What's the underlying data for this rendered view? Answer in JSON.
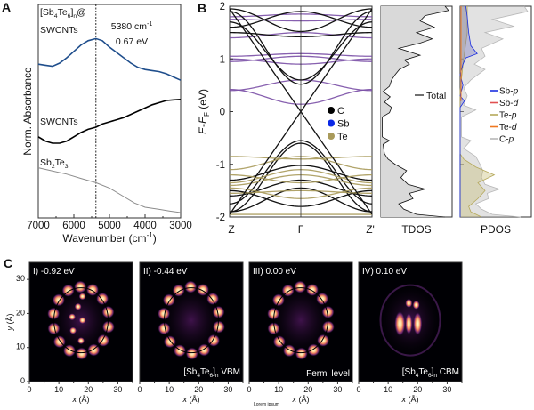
{
  "chart_data": [
    {
      "panel": "A",
      "type": "line",
      "xlabel": "Wavenumber (cm-1)",
      "xlabel_main": "Wavenumber (cm",
      "xlabel_sup": "-1",
      "xlabel_end": ")",
      "ylabel": "Norm. Absorbance",
      "xlim": [
        7000,
        3000
      ],
      "ylim": [
        0,
        1
      ],
      "xticks": [
        7000,
        6000,
        5000,
        4000,
        3000
      ],
      "marker_line": {
        "x": 5380,
        "label1": "5380 cm",
        "label1_sup": "-1",
        "label2": "0.67 eV"
      },
      "series": [
        {
          "name": "[Sb4Te6]n@SWCNTs",
          "label_parts": [
            "[Sb",
            "4",
            "Te",
            "6",
            "]",
            "n",
            "@"
          ],
          "label_line2": "SWCNTs",
          "color": "#1f4e8c",
          "points": [
            [
              7000,
              0.72
            ],
            [
              6800,
              0.715
            ],
            [
              6600,
              0.71
            ],
            [
              6400,
              0.725
            ],
            [
              6200,
              0.75
            ],
            [
              6000,
              0.78
            ],
            [
              5800,
              0.81
            ],
            [
              5600,
              0.83
            ],
            [
              5380,
              0.84
            ],
            [
              5200,
              0.83
            ],
            [
              5000,
              0.8
            ],
            [
              4800,
              0.775
            ],
            [
              4600,
              0.75
            ],
            [
              4400,
              0.725
            ],
            [
              4200,
              0.705
            ],
            [
              4000,
              0.695
            ],
            [
              3800,
              0.69
            ],
            [
              3600,
              0.685
            ],
            [
              3400,
              0.675
            ],
            [
              3200,
              0.66
            ],
            [
              3000,
              0.645
            ]
          ]
        },
        {
          "name": "SWCNTs",
          "label": "SWCNTs",
          "color": "#000000",
          "points": [
            [
              7000,
              0.38
            ],
            [
              6800,
              0.36
            ],
            [
              6600,
              0.35
            ],
            [
              6400,
              0.35
            ],
            [
              6200,
              0.36
            ],
            [
              6000,
              0.38
            ],
            [
              5800,
              0.4
            ],
            [
              5600,
              0.415
            ],
            [
              5380,
              0.425
            ],
            [
              5200,
              0.44
            ],
            [
              5000,
              0.45
            ],
            [
              4800,
              0.46
            ],
            [
              4600,
              0.47
            ],
            [
              4400,
              0.485
            ],
            [
              4200,
              0.5
            ],
            [
              4000,
              0.515
            ],
            [
              3800,
              0.53
            ],
            [
              3600,
              0.54
            ],
            [
              3400,
              0.55
            ],
            [
              3200,
              0.553
            ],
            [
              3000,
              0.555
            ]
          ]
        },
        {
          "name": "Sb2Te3",
          "label_parts": [
            "Sb",
            "2",
            "Te",
            "3"
          ],
          "color": "#8c8c8c",
          "points": [
            [
              7000,
              0.235
            ],
            [
              6600,
              0.22
            ],
            [
              6200,
              0.205
            ],
            [
              5800,
              0.185
            ],
            [
              5380,
              0.165
            ],
            [
              5000,
              0.14
            ],
            [
              4600,
              0.1
            ],
            [
              4300,
              0.07
            ],
            [
              4000,
              0.05
            ],
            [
              3600,
              0.04
            ],
            [
              3300,
              0.032
            ],
            [
              3000,
              0.025
            ]
          ]
        }
      ]
    },
    {
      "panel": "B-bands",
      "type": "line",
      "ylabel": "E-EF (eV)",
      "ylabel_main": "E",
      "ylabel_mid": "-E",
      "ylabel_sub": "F",
      "ylabel_end": " (eV)",
      "ylim": [
        -2,
        2
      ],
      "yticks": [
        -2,
        -1,
        0,
        1,
        2
      ],
      "kpoints": [
        "Z",
        "Γ",
        "Z'"
      ],
      "legend": [
        {
          "label": "C",
          "color": "#000000"
        },
        {
          "label": "Sb",
          "color": "#0a28e6"
        },
        {
          "label": "Te",
          "color": "#a99a5a"
        }
      ],
      "band_colors": {
        "C": "#111111",
        "Sb": "#7a4fa6",
        "Te": "#a99a5a"
      },
      "bands": [
        {
          "type": "Sb",
          "e_gamma": 0.14,
          "e_edge": 0.42
        },
        {
          "type": "Sb",
          "e_gamma": 0.6,
          "e_edge": 0.4
        },
        {
          "type": "Sb",
          "e_gamma": 0.9,
          "e_edge": 1.0
        },
        {
          "type": "Sb",
          "e_gamma": 1.05,
          "e_edge": 0.95
        },
        {
          "type": "Sb",
          "e_gamma": 1.1,
          "e_edge": 1.05
        },
        {
          "type": "Sb",
          "e_gamma": 1.5,
          "e_edge": 1.4
        },
        {
          "type": "Sb",
          "e_gamma": 1.72,
          "e_edge": 1.75
        },
        {
          "type": "Sb",
          "e_gamma": 1.85,
          "e_edge": 1.8
        },
        {
          "type": "C",
          "e_gamma": 0.52,
          "e_edge": 1.9
        },
        {
          "type": "C",
          "e_gamma": 0.6,
          "e_edge": 1.7
        },
        {
          "type": "C",
          "e_gamma": 1.42,
          "e_edge": 1.5
        },
        {
          "type": "C",
          "e_gamma": 1.52,
          "e_edge": 1.95
        },
        {
          "type": "C",
          "e_gamma": 1.9,
          "e_edge": 1.6
        },
        {
          "type": "C",
          "e_gamma": -0.55,
          "e_edge": -1.75
        },
        {
          "type": "C",
          "e_gamma": -0.6,
          "e_edge": -1.9
        },
        {
          "type": "C",
          "e_gamma": -1.02,
          "e_edge": -1.3
        },
        {
          "type": "C",
          "e_gamma": -1.3,
          "e_edge": -1.6
        },
        {
          "type": "C",
          "e_gamma": -1.45,
          "e_edge": -1.9
        },
        {
          "type": "C",
          "e_gamma": -1.8,
          "e_edge": -1.5
        },
        {
          "type": "Te",
          "e_gamma": -0.85,
          "e_edge": -1.1
        },
        {
          "type": "Te",
          "e_gamma": -0.9,
          "e_edge": -0.85
        },
        {
          "type": "Te",
          "e_gamma": -1.1,
          "e_edge": -1.35
        },
        {
          "type": "Te",
          "e_gamma": -1.2,
          "e_edge": -1.4
        },
        {
          "type": "Te",
          "e_gamma": -1.35,
          "e_edge": -1.2
        },
        {
          "type": "Te",
          "e_gamma": -1.5,
          "e_edge": -1.55
        },
        {
          "type": "Te",
          "e_gamma": -1.65,
          "e_edge": -1.45
        },
        {
          "type": "Te",
          "e_gamma": -1.95,
          "e_edge": -1.95
        }
      ],
      "dirac_edge_energy": 1.95
    },
    {
      "panel": "B-TDOS",
      "type": "area",
      "xlabel": "TDOS",
      "legend": [
        {
          "label": "Total",
          "color": "#000000"
        }
      ],
      "fill": "#d9d9d9",
      "points": [
        [
          -2,
          0.9
        ],
        [
          -1.95,
          0.5
        ],
        [
          -1.85,
          0.32
        ],
        [
          -1.75,
          0.25
        ],
        [
          -1.65,
          0.45
        ],
        [
          -1.55,
          0.4
        ],
        [
          -1.47,
          0.62
        ],
        [
          -1.38,
          0.38
        ],
        [
          -1.25,
          0.28
        ],
        [
          -1.12,
          0.36
        ],
        [
          -1.0,
          0.2
        ],
        [
          -0.9,
          0.1
        ],
        [
          -0.8,
          0.05
        ],
        [
          -0.62,
          0.03
        ],
        [
          -0.55,
          0.12
        ],
        [
          -0.48,
          0.02
        ],
        [
          -0.1,
          0.02
        ],
        [
          -0.02,
          0.12
        ],
        [
          0.08,
          0.15
        ],
        [
          0.18,
          0.05
        ],
        [
          0.28,
          0.13
        ],
        [
          0.38,
          0.03
        ],
        [
          0.48,
          0.12
        ],
        [
          0.6,
          0.15
        ],
        [
          0.7,
          0.2
        ],
        [
          0.8,
          0.26
        ],
        [
          0.9,
          0.4
        ],
        [
          0.98,
          0.33
        ],
        [
          1.07,
          0.55
        ],
        [
          1.2,
          0.25
        ],
        [
          1.3,
          0.55
        ],
        [
          1.38,
          0.72
        ],
        [
          1.5,
          0.5
        ],
        [
          1.6,
          0.75
        ],
        [
          1.72,
          0.55
        ],
        [
          1.82,
          0.62
        ],
        [
          1.92,
          0.95
        ],
        [
          2,
          0.9
        ]
      ]
    },
    {
      "panel": "B-PDOS",
      "type": "area",
      "xlabel": "PDOS",
      "legend": [
        {
          "label": "Sb-",
          "orb": "p",
          "color": "#1a2ee0"
        },
        {
          "label": "Sb-",
          "orb": "d",
          "color": "#e05050"
        },
        {
          "label": "Te-",
          "orb": "p",
          "color": "#b5a85a"
        },
        {
          "label": "Te-",
          "orb": "d",
          "color": "#f07820"
        },
        {
          "label": "C-",
          "orb": "p",
          "color": "#b8b8b8"
        }
      ],
      "series": [
        {
          "name": "C-p",
          "color": "#b8b8b8",
          "fill": "rgba(190,190,190,0.45)",
          "points": [
            [
              -2,
              0.85
            ],
            [
              -1.95,
              0.45
            ],
            [
              -1.85,
              0.3
            ],
            [
              -1.75,
              0.22
            ],
            [
              -1.65,
              0.4
            ],
            [
              -1.55,
              0.38
            ],
            [
              -1.47,
              0.55
            ],
            [
              -1.38,
              0.35
            ],
            [
              -1.25,
              0.3
            ],
            [
              -1.12,
              0.32
            ],
            [
              -1.0,
              0.28
            ],
            [
              -0.85,
              0.22
            ],
            [
              -0.7,
              0.05
            ],
            [
              -0.55,
              0.15
            ],
            [
              -0.48,
              0.02
            ],
            [
              -0.1,
              0.02
            ],
            [
              0.03,
              0.22
            ],
            [
              0.12,
              0.05
            ],
            [
              0.3,
              0.1
            ],
            [
              0.45,
              0.05
            ],
            [
              0.6,
              0.15
            ],
            [
              0.8,
              0.35
            ],
            [
              0.9,
              0.2
            ],
            [
              1.05,
              0.35
            ],
            [
              1.2,
              0.3
            ],
            [
              1.38,
              0.6
            ],
            [
              1.5,
              0.35
            ],
            [
              1.62,
              0.75
            ],
            [
              1.75,
              0.45
            ],
            [
              1.9,
              0.95
            ],
            [
              2,
              0.9
            ]
          ]
        },
        {
          "name": "Te-p",
          "color": "#b5a85a",
          "fill": "rgba(200,190,120,0.4)",
          "points": [
            [
              -2,
              0.3
            ],
            [
              -1.9,
              0.15
            ],
            [
              -1.8,
              0.12
            ],
            [
              -1.65,
              0.25
            ],
            [
              -1.5,
              0.35
            ],
            [
              -1.35,
              0.25
            ],
            [
              -1.2,
              0.48
            ],
            [
              -1.05,
              0.22
            ],
            [
              -0.9,
              0.05
            ],
            [
              -0.8,
              0.0
            ],
            [
              0.4,
              0.0
            ],
            [
              1.0,
              0.05
            ],
            [
              1.5,
              0.1
            ],
            [
              2,
              0.1
            ]
          ]
        },
        {
          "name": "Sb-p",
          "color": "#1a2ee0",
          "fill": "rgba(110,110,190,0.35)",
          "points": [
            [
              -2,
              0.0
            ],
            [
              0.08,
              0.0
            ],
            [
              0.2,
              0.06
            ],
            [
              0.3,
              0.0
            ],
            [
              0.5,
              0.04
            ],
            [
              0.7,
              0.0
            ],
            [
              0.9,
              0.04
            ],
            [
              1.02,
              0.08
            ],
            [
              1.1,
              0.24
            ],
            [
              1.25,
              0.15
            ],
            [
              1.5,
              0.12
            ],
            [
              1.8,
              0.1
            ],
            [
              2,
              0.08
            ]
          ]
        }
      ]
    },
    {
      "panel": "C",
      "type": "heatmap",
      "xlabel": "x (Å)",
      "ylabel": "y (Å)",
      "xlim": [
        0,
        35
      ],
      "ylim": [
        0,
        35
      ],
      "xticks": [
        0,
        10,
        20,
        30
      ],
      "yticks": [
        0,
        10,
        20,
        30
      ],
      "colormap": "magma",
      "maps": [
        {
          "title": "I) -0.92 eV",
          "mode": "ring-center",
          "caption": ""
        },
        {
          "title": "II) -0.44 eV",
          "mode": "ring",
          "caption_parts": [
            "[Sb",
            "4",
            "Te",
            "6",
            "]",
            "n",
            " VBM"
          ]
        },
        {
          "title": "III) 0.00 eV",
          "mode": "ring",
          "caption": "Fermi level"
        },
        {
          "title": "IV) 0.10 eV",
          "mode": "center",
          "caption_parts": [
            "[Sb",
            "4",
            "Te",
            "6",
            "]",
            "n",
            " CBM"
          ]
        }
      ]
    }
  ],
  "panel_labels": [
    "A",
    "B",
    "C"
  ],
  "footer_text": "Lorem ipsum"
}
